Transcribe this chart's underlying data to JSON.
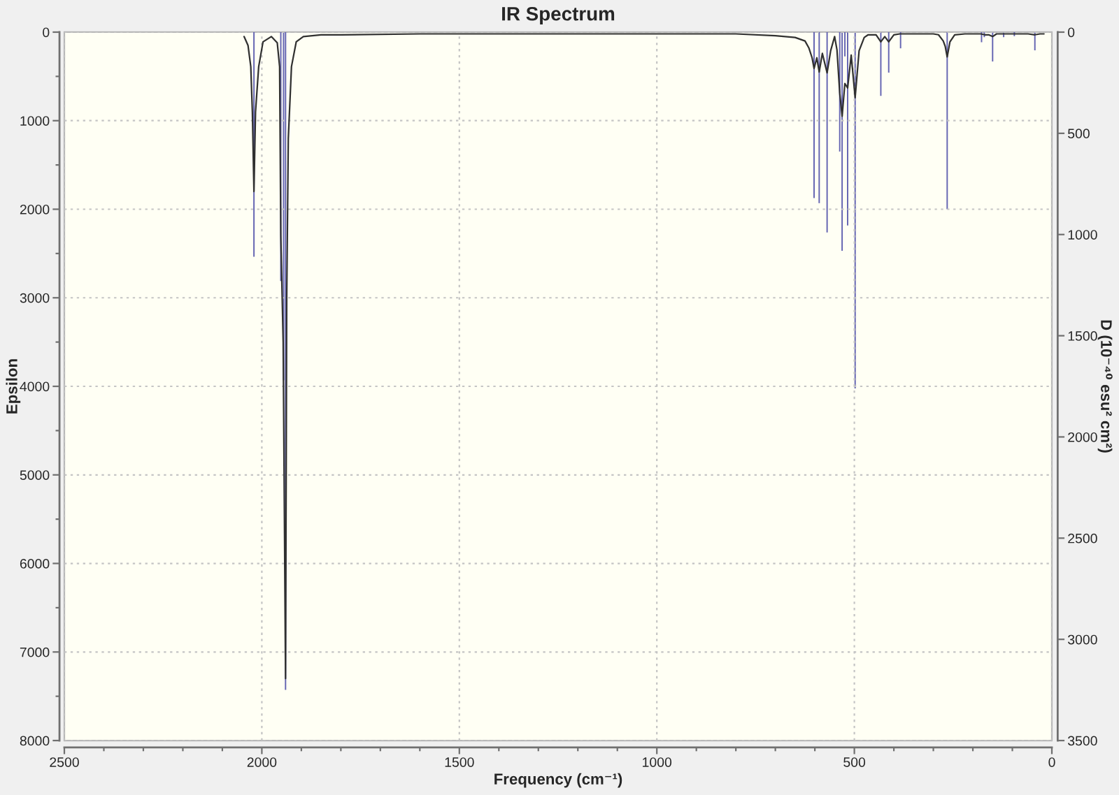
{
  "chart_data": {
    "type": "line",
    "title": "IR Spectrum",
    "xlabel": "Frequency (cm⁻¹)",
    "ylabel": "Epsilon",
    "y2label": "D (10⁻⁴⁰ esu² cm²)",
    "xlim": [
      2500,
      0
    ],
    "ylim": [
      8000,
      0
    ],
    "y2lim": [
      3500,
      0
    ],
    "xticks": [
      2500,
      {
        "value": 2400,
        "label": null
      },
      {
        "value": 2300,
        "label": null
      },
      {
        "value": 2200,
        "label": null
      },
      {
        "value": 2100,
        "label": null
      },
      2000,
      {
        "value": 1900,
        "label": null
      },
      {
        "value": 1800,
        "label": null
      },
      {
        "value": 1700,
        "label": null
      },
      {
        "value": 1600,
        "label": null
      },
      1500,
      {
        "value": 1400,
        "label": null
      },
      {
        "value": 1300,
        "label": null
      },
      {
        "value": 1200,
        "label": null
      },
      {
        "value": 1100,
        "label": null
      },
      1000,
      {
        "value": 900,
        "label": null
      },
      {
        "value": 800,
        "label": null
      },
      {
        "value": 700,
        "label": null
      },
      {
        "value": 600,
        "label": null
      },
      500,
      {
        "value": 400,
        "label": null
      },
      {
        "value": 300,
        "label": null
      },
      {
        "value": 200,
        "label": null
      },
      {
        "value": 100,
        "label": null
      },
      0
    ],
    "yticks": [
      0,
      {
        "value": 500,
        "label": null
      },
      1000,
      {
        "value": 1500,
        "label": null
      },
      2000,
      {
        "value": 2500,
        "label": null
      },
      3000,
      {
        "value": 3500,
        "label": null
      },
      4000,
      {
        "value": 4500,
        "label": null
      },
      5000,
      {
        "value": 5500,
        "label": null
      },
      6000,
      {
        "value": 6500,
        "label": null
      },
      7000,
      {
        "value": 7500,
        "label": null
      },
      8000
    ],
    "y2ticks": [
      0,
      500,
      1000,
      1500,
      2000,
      2500,
      3000,
      3500
    ],
    "grid": true,
    "series": [
      {
        "color": "#303030",
        "x": [
          2045,
          2035,
          2028,
          2024,
          2020,
          2016,
          2008,
          1997,
          1976,
          1961,
          1955,
          1952,
          1946,
          1940,
          1937,
          1933,
          1925,
          1913,
          1895,
          1850,
          1800,
          1600,
          1400,
          1200,
          1000,
          800,
          700,
          650,
          625,
          615,
          607,
          602,
          595,
          589,
          581,
          569,
          560,
          550,
          544,
          537,
          531,
          524,
          517,
          508,
          498,
          488,
          475,
          465,
          445,
          433,
          423,
          413,
          400,
          385,
          350,
          300,
          287,
          275,
          270,
          265,
          258,
          246,
          220,
          180,
          170,
          160,
          150,
          140,
          120,
          100,
          60,
          43,
          30,
          20
        ],
        "values": [
          50,
          150,
          390,
          900,
          1800,
          900,
          390,
          110,
          50,
          120,
          390,
          2300,
          3500,
          7300,
          3000,
          1200,
          390,
          110,
          50,
          30,
          30,
          20,
          20,
          20,
          20,
          20,
          40,
          60,
          100,
          180,
          290,
          410,
          290,
          450,
          240,
          460,
          210,
          50,
          200,
          690,
          950,
          580,
          630,
          260,
          740,
          210,
          60,
          30,
          30,
          110,
          50,
          110,
          30,
          20,
          20,
          20,
          30,
          100,
          160,
          280,
          110,
          30,
          20,
          20,
          30,
          30,
          50,
          20,
          20,
          20,
          20,
          30,
          20,
          20
        ]
      },
      {
        "type": "bar",
        "axis": "y2",
        "color": "#6666b3",
        "x": [
          2020,
          1952,
          1945,
          1940,
          602,
          589,
          569,
          537,
          531,
          524,
          517,
          498,
          433,
          413,
          383,
          265,
          178,
          171,
          150,
          122,
          95,
          43
        ],
        "values": [
          1110,
          1230,
          1720,
          3250,
          820,
          845,
          990,
          590,
          1080,
          120,
          955,
          1760,
          315,
          200,
          80,
          875,
          50,
          25,
          145,
          25,
          20,
          90
        ]
      }
    ]
  }
}
